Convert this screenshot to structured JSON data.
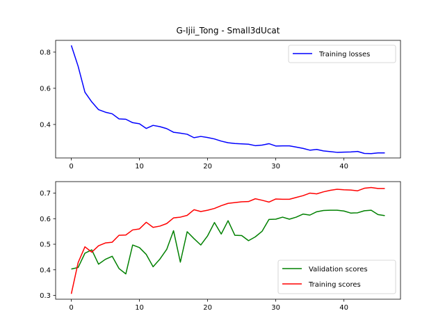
{
  "title": "G-Ijii_Tong - Small3dUcat",
  "colors": {
    "losses": "#0000ff",
    "validation": "#008000",
    "training_scores": "#ff0000",
    "legend_border": "#cccccc"
  },
  "chart_data": [
    {
      "type": "line",
      "title": "G-Ijii_Tong - Small3dUcat",
      "xlim": [
        -2.3,
        48.3
      ],
      "ylim": [
        0.215,
        0.865
      ],
      "xticks": [
        0,
        10,
        20,
        30,
        40
      ],
      "yticks": [
        0.4,
        0.6,
        0.8
      ],
      "legend": "top-right",
      "series": [
        {
          "name": "Training losses",
          "color_key": "losses",
          "y": [
            0.837,
            0.722,
            0.578,
            0.525,
            0.482,
            0.468,
            0.459,
            0.431,
            0.429,
            0.41,
            0.404,
            0.378,
            0.395,
            0.388,
            0.377,
            0.357,
            0.352,
            0.346,
            0.327,
            0.334,
            0.328,
            0.32,
            0.308,
            0.299,
            0.295,
            0.293,
            0.291,
            0.283,
            0.286,
            0.294,
            0.281,
            0.282,
            0.282,
            0.275,
            0.268,
            0.258,
            0.262,
            0.254,
            0.25,
            0.246,
            0.247,
            0.248,
            0.251,
            0.24,
            0.239,
            0.243,
            0.243
          ]
        }
      ]
    },
    {
      "type": "line",
      "xlim": [
        -2.3,
        48.3
      ],
      "ylim": [
        0.285,
        0.745
      ],
      "xticks": [
        0,
        10,
        20,
        30,
        40
      ],
      "yticks": [
        0.3,
        0.4,
        0.5,
        0.6,
        0.7
      ],
      "legend": "bottom-right",
      "series": [
        {
          "name": "Validation scores",
          "color_key": "validation",
          "y": [
            0.403,
            0.409,
            0.465,
            0.478,
            0.422,
            0.441,
            0.453,
            0.405,
            0.384,
            0.497,
            0.487,
            0.46,
            0.412,
            0.442,
            0.48,
            0.553,
            0.43,
            0.549,
            0.522,
            0.497,
            0.533,
            0.585,
            0.54,
            0.592,
            0.535,
            0.534,
            0.514,
            0.529,
            0.551,
            0.597,
            0.598,
            0.606,
            0.598,
            0.606,
            0.618,
            0.614,
            0.627,
            0.632,
            0.633,
            0.633,
            0.63,
            0.622,
            0.623,
            0.631,
            0.633,
            0.616,
            0.612
          ]
        },
        {
          "name": "Training scores",
          "color_key": "training_scores",
          "y": [
            0.306,
            0.428,
            0.49,
            0.469,
            0.494,
            0.505,
            0.508,
            0.535,
            0.536,
            0.556,
            0.56,
            0.586,
            0.566,
            0.571,
            0.581,
            0.603,
            0.606,
            0.613,
            0.635,
            0.628,
            0.633,
            0.64,
            0.651,
            0.66,
            0.663,
            0.666,
            0.667,
            0.678,
            0.672,
            0.665,
            0.677,
            0.676,
            0.676,
            0.683,
            0.69,
            0.7,
            0.697,
            0.705,
            0.711,
            0.715,
            0.713,
            0.712,
            0.709,
            0.719,
            0.722,
            0.718,
            0.718
          ]
        }
      ]
    }
  ]
}
